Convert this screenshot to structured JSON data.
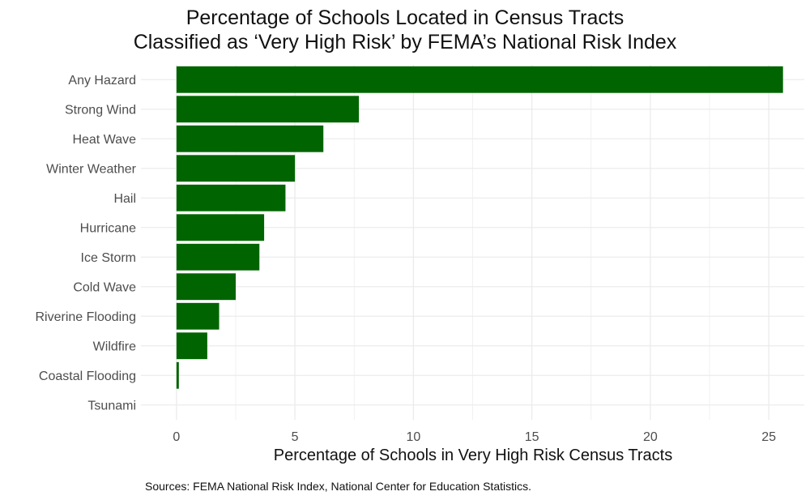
{
  "chart_data": {
    "type": "bar",
    "orientation": "horizontal",
    "title_lines": [
      "Percentage of Schools Located in Census Tracts",
      "Classified as ‘Very High Risk’ by FEMA’s National Risk Index"
    ],
    "xlabel": "Percentage of Schools in Very High Risk Census Tracts",
    "ylabel": "",
    "categories": [
      "Any Hazard",
      "Strong Wind",
      "Heat Wave",
      "Winter Weather",
      "Hail",
      "Hurricane",
      "Ice Storm",
      "Cold Wave",
      "Riverine Flooding",
      "Wildfire",
      "Coastal Flooding",
      "Tsunami"
    ],
    "values": [
      25.6,
      7.7,
      6.2,
      5.0,
      4.6,
      3.7,
      3.5,
      2.5,
      1.8,
      1.3,
      0.1,
      0.0
    ],
    "xlim": [
      -1.5,
      26.5
    ],
    "xticks": [
      0,
      5,
      10,
      15,
      20,
      25
    ],
    "grid": true,
    "bar_color": "#006400",
    "grid_color": "#ebebeb"
  },
  "caption": "Sources: FEMA National Risk Index, National Center for Education Statistics."
}
